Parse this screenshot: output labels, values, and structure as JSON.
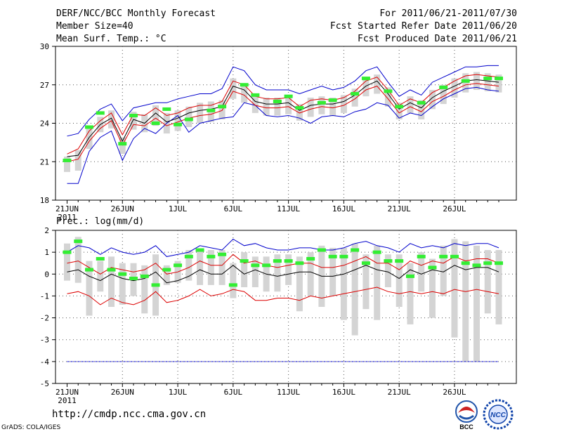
{
  "header": {
    "title": "DERF/NCC/BCC Monthly Forecast",
    "member_size": "Member Size=40",
    "variable": "Mean Surf. Temp.: °C",
    "period": "For 2011/06/21-2011/07/30",
    "fcst_started": "Fcst Started Refer Date 2011/06/20",
    "fcst_produced": "Fcst Produced Date 2011/06/21"
  },
  "footer": {
    "url": "http://cmdp.ncc.cma.gov.cn",
    "credit": "GrADS: COLA/IGES",
    "logo_left_text": "BCC",
    "logo_right_text": "NCC"
  },
  "colors": {
    "observed": "#33ee33",
    "box": "#d4d4d4",
    "envelope": "#0000cc",
    "spread": "#dd0000",
    "mean": "#000000",
    "grid": "#555555"
  },
  "chart_data": [
    {
      "type": "line",
      "title": "Mean Surf. Temp.: °C",
      "x_tick_labels": [
        "21JUN",
        "26JUN",
        "1JUL",
        "6JUL",
        "11JUL",
        "16JUL",
        "21JUL",
        "26JUL"
      ],
      "x_subtitle": "2011",
      "y_tick_labels": [
        "18",
        "21",
        "24",
        "27",
        "30"
      ],
      "ylim": [
        18,
        30
      ],
      "days": 40,
      "series": [
        {
          "name": "max",
          "values": [
            19.3,
            19.3,
            21.8,
            22.9,
            23.4,
            21.1,
            22.8,
            23.6,
            23.2,
            24.0,
            24.6,
            23.3,
            24.0,
            24.2,
            24.4,
            24.5,
            25.6,
            25.4,
            24.6,
            24.5,
            24.6,
            24.4,
            24.0,
            24.5,
            24.6,
            24.5,
            24.9,
            25.1,
            25.6,
            25.4,
            24.4,
            24.8,
            24.6,
            25.3,
            25.9,
            26.3,
            26.7,
            26.8,
            26.6,
            26.5
          ]
        },
        {
          "name": "min",
          "values": [
            23.0,
            23.2,
            24.3,
            25.1,
            25.5,
            24.2,
            25.2,
            25.4,
            25.6,
            25.6,
            25.9,
            26.1,
            26.3,
            26.3,
            26.7,
            28.4,
            28.1,
            27.0,
            26.6,
            26.6,
            26.6,
            26.3,
            26.6,
            26.9,
            26.6,
            26.8,
            27.3,
            28.1,
            28.4,
            27.2,
            26.1,
            26.6,
            26.2,
            27.2,
            27.6,
            28.0,
            28.4,
            28.4,
            28.5,
            28.5
          ]
        },
        {
          "name": "upper",
          "values": [
            21.6,
            22.0,
            23.4,
            24.2,
            24.8,
            23.1,
            24.7,
            24.6,
            25.2,
            24.6,
            24.8,
            25.2,
            25.4,
            25.4,
            25.7,
            27.3,
            27.0,
            26.1,
            25.9,
            25.9,
            26.0,
            25.3,
            25.8,
            25.9,
            25.8,
            26.0,
            26.5,
            27.3,
            27.6,
            26.6,
            25.4,
            25.9,
            25.6,
            26.4,
            26.8,
            27.3,
            27.7,
            27.8,
            27.7,
            27.6
          ]
        },
        {
          "name": "lower",
          "values": [
            21.0,
            21.2,
            22.6,
            23.6,
            24.2,
            22.3,
            23.9,
            23.8,
            24.4,
            23.8,
            24.1,
            24.4,
            24.6,
            24.7,
            25.0,
            26.5,
            26.2,
            25.4,
            25.2,
            25.2,
            25.3,
            24.8,
            25.1,
            25.3,
            25.2,
            25.4,
            25.9,
            26.6,
            26.9,
            25.9,
            24.8,
            25.3,
            24.9,
            25.7,
            26.1,
            26.6,
            27.0,
            27.1,
            27.0,
            26.9
          ]
        },
        {
          "name": "mean",
          "values": [
            21.4,
            21.5,
            22.9,
            23.9,
            24.4,
            22.6,
            24.3,
            24.0,
            24.8,
            24.1,
            24.4,
            24.8,
            25.0,
            25.1,
            25.3,
            26.9,
            26.6,
            25.7,
            25.5,
            25.5,
            25.6,
            25.0,
            25.4,
            25.5,
            25.5,
            25.7,
            26.2,
            26.9,
            27.3,
            26.3,
            25.1,
            25.6,
            25.2,
            26.0,
            26.5,
            26.9,
            27.3,
            27.4,
            27.3,
            27.2
          ]
        },
        {
          "name": "observed",
          "values": [
            21.1,
            null,
            23.7,
            24.8,
            null,
            22.4,
            24.6,
            null,
            24.0,
            25.1,
            23.9,
            24.3,
            null,
            25.0,
            25.3,
            null,
            27.0,
            26.2,
            null,
            25.7,
            26.1,
            25.2,
            null,
            25.6,
            25.8,
            null,
            26.3,
            27.5,
            null,
            26.5,
            25.3,
            null,
            25.6,
            null,
            26.8,
            null,
            27.3,
            null,
            27.5,
            27.5
          ]
        },
        {
          "name": "box_low",
          "values": [
            20.2,
            20.3,
            22.0,
            23.3,
            23.6,
            21.6,
            23.5,
            23.3,
            23.8,
            23.2,
            23.4,
            23.7,
            24.0,
            24.1,
            24.3,
            25.9,
            25.6,
            24.8,
            24.6,
            24.6,
            24.7,
            24.2,
            24.5,
            24.7,
            24.6,
            24.8,
            25.3,
            26.1,
            26.3,
            25.3,
            24.3,
            24.8,
            24.3,
            25.1,
            25.5,
            26.0,
            26.4,
            26.6,
            26.5,
            26.4
          ]
        },
        {
          "name": "box_high",
          "values": [
            21.4,
            21.9,
            23.6,
            24.5,
            25.0,
            22.9,
            24.9,
            24.7,
            25.4,
            24.8,
            25.0,
            25.3,
            25.6,
            25.7,
            25.8,
            27.5,
            27.1,
            26.2,
            26.0,
            26.0,
            26.1,
            25.5,
            26.0,
            26.1,
            26.0,
            26.2,
            26.7,
            27.4,
            27.8,
            26.8,
            25.6,
            26.1,
            25.8,
            26.6,
            27.0,
            27.5,
            27.9,
            28.0,
            27.9,
            27.8
          ]
        }
      ]
    },
    {
      "type": "line",
      "title": "Prec.: log(mm/d)",
      "x_tick_labels": [
        "21JUN",
        "26JUN",
        "1JUL",
        "6JUL",
        "11JUL",
        "16JUL",
        "21JUL",
        "26JUL"
      ],
      "x_subtitle": "2011",
      "y_tick_labels": [
        "-5",
        "-4",
        "-3",
        "-2",
        "-1",
        "0",
        "1",
        "2"
      ],
      "ylim": [
        -5,
        2
      ],
      "days": 40,
      "series": [
        {
          "name": "max",
          "values": [
            1.0,
            1.3,
            1.2,
            0.9,
            1.2,
            1.0,
            0.9,
            1.0,
            1.3,
            0.8,
            0.9,
            1.0,
            1.3,
            1.2,
            1.1,
            1.6,
            1.3,
            1.4,
            1.2,
            1.1,
            1.1,
            1.2,
            1.2,
            1.1,
            1.1,
            1.2,
            1.4,
            1.5,
            1.3,
            1.2,
            1.0,
            1.4,
            1.2,
            1.3,
            1.2,
            1.4,
            1.3,
            1.4,
            1.4,
            1.2
          ]
        },
        {
          "name": "min",
          "values": [
            -4.0,
            -4.0,
            -4.0,
            -4.0,
            -4.0,
            -4.0,
            -4.0,
            -4.0,
            -4.0,
            -4.0,
            -4.0,
            -4.0,
            -4.0,
            -4.0,
            -4.0,
            -4.0,
            -4.0,
            -4.0,
            -4.0,
            -4.0,
            -4.0,
            -4.0,
            -4.0,
            -4.0,
            -4.0,
            -4.0,
            -4.0,
            -4.0,
            -4.0,
            -4.0,
            -4.0,
            -4.0,
            -4.0,
            -4.0,
            -4.0,
            -4.0,
            -4.0,
            -4.0,
            -4.0,
            -4.0
          ]
        },
        {
          "name": "upper",
          "values": [
            0.5,
            0.6,
            0.3,
            0.0,
            0.3,
            0.2,
            0.1,
            0.2,
            0.5,
            0.0,
            0.1,
            0.3,
            0.6,
            0.4,
            0.4,
            0.9,
            0.5,
            0.6,
            0.4,
            0.3,
            0.4,
            0.5,
            0.5,
            0.3,
            0.3,
            0.4,
            0.6,
            0.8,
            0.5,
            0.5,
            0.2,
            0.6,
            0.4,
            0.6,
            0.5,
            0.8,
            0.6,
            0.7,
            0.7,
            0.5
          ]
        },
        {
          "name": "lower",
          "values": [
            -0.9,
            -0.8,
            -1.0,
            -1.4,
            -1.1,
            -1.3,
            -1.4,
            -1.2,
            -0.8,
            -1.3,
            -1.2,
            -1.0,
            -0.7,
            -1.0,
            -0.9,
            -0.7,
            -0.8,
            -1.2,
            -1.2,
            -1.1,
            -1.1,
            -1.2,
            -1.0,
            -1.1,
            -1.0,
            -0.9,
            -0.8,
            -0.7,
            -0.6,
            -0.8,
            -0.9,
            -0.8,
            -0.9,
            -0.8,
            -0.9,
            -0.7,
            -0.8,
            -0.7,
            -0.8,
            -0.9
          ]
        },
        {
          "name": "mean",
          "values": [
            0.1,
            0.2,
            -0.1,
            -0.3,
            0.0,
            -0.2,
            -0.3,
            -0.2,
            0.1,
            -0.4,
            -0.3,
            -0.1,
            0.2,
            0.0,
            0.0,
            0.4,
            0.0,
            0.2,
            0.0,
            -0.1,
            0.0,
            0.1,
            0.1,
            -0.1,
            -0.1,
            0.0,
            0.2,
            0.4,
            0.2,
            0.1,
            -0.2,
            0.2,
            0.0,
            0.2,
            0.1,
            0.4,
            0.2,
            0.3,
            0.3,
            0.1
          ]
        },
        {
          "name": "observed",
          "values": [
            1.0,
            1.5,
            0.2,
            0.7,
            0.2,
            0.0,
            -0.2,
            -0.1,
            -0.5,
            0.2,
            0.4,
            0.8,
            1.1,
            0.8,
            0.9,
            -0.5,
            0.6,
            0.4,
            0.4,
            0.6,
            0.6,
            0.5,
            0.7,
            1.1,
            0.8,
            0.8,
            1.1,
            0.5,
            1.0,
            0.6,
            0.6,
            -0.1,
            0.8,
            0.3,
            0.8,
            0.8,
            0.5,
            0.4,
            0.5,
            0.5
          ]
        },
        {
          "name": "box_low",
          "values": [
            -0.3,
            -0.4,
            -1.9,
            -0.8,
            -1.5,
            -1.4,
            -1.0,
            -1.8,
            -1.9,
            -0.5,
            -0.4,
            -0.3,
            -0.5,
            -0.5,
            -0.5,
            -1.1,
            -0.6,
            -0.6,
            -0.8,
            -0.8,
            -0.5,
            -1.7,
            -1.0,
            -1.5,
            -1.0,
            -2.1,
            -2.8,
            -1.6,
            -2.1,
            -0.6,
            -1.5,
            -2.3,
            -0.8,
            -2.0,
            -1.0,
            -2.9,
            -4.0,
            -4.0,
            -1.8,
            -2.3
          ]
        },
        {
          "name": "box_high",
          "values": [
            1.4,
            1.7,
            0.6,
            0.6,
            0.8,
            0.5,
            0.5,
            0.4,
            0.9,
            0.4,
            0.6,
            1.1,
            1.1,
            1.1,
            1.1,
            0.5,
            1.0,
            0.8,
            0.8,
            0.9,
            0.9,
            0.8,
            1.0,
            1.3,
            1.2,
            1.2,
            1.4,
            0.9,
            1.3,
            0.9,
            0.9,
            0.5,
            1.0,
            0.7,
            1.3,
            1.6,
            1.5,
            1.3,
            1.1,
            1.1
          ]
        }
      ]
    }
  ]
}
